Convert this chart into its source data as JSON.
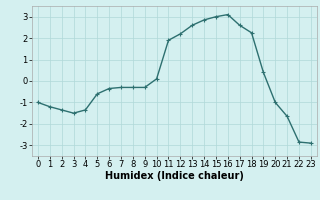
{
  "x": [
    0,
    1,
    2,
    3,
    4,
    5,
    6,
    7,
    8,
    9,
    10,
    11,
    12,
    13,
    14,
    15,
    16,
    17,
    18,
    19,
    20,
    21,
    22,
    23
  ],
  "y": [
    -1.0,
    -1.2,
    -1.35,
    -1.5,
    -1.35,
    -0.6,
    -0.35,
    -0.3,
    -0.3,
    -0.3,
    0.1,
    1.9,
    2.2,
    2.6,
    2.85,
    3.0,
    3.1,
    2.6,
    2.25,
    0.4,
    -1.0,
    -1.65,
    -2.85,
    -2.9
  ],
  "line_color": "#2d7070",
  "marker": "+",
  "marker_size": 3,
  "background_color": "#d4f0f0",
  "grid_color": "#b0d8d8",
  "xlabel": "Humidex (Indice chaleur)",
  "xlim": [
    -0.5,
    23.5
  ],
  "ylim": [
    -3.5,
    3.5
  ],
  "yticks": [
    -3,
    -2,
    -1,
    0,
    1,
    2,
    3
  ],
  "xticks": [
    0,
    1,
    2,
    3,
    4,
    5,
    6,
    7,
    8,
    9,
    10,
    11,
    12,
    13,
    14,
    15,
    16,
    17,
    18,
    19,
    20,
    21,
    22,
    23
  ],
  "xlabel_fontsize": 7,
  "tick_fontsize": 6,
  "line_width": 1.0
}
